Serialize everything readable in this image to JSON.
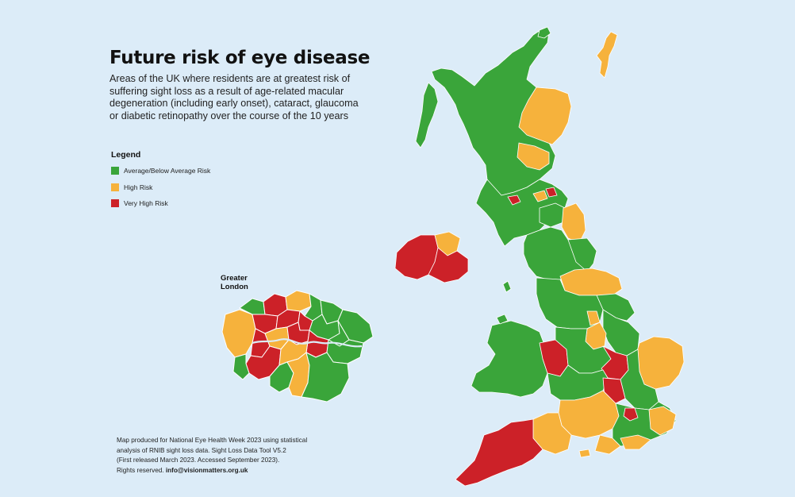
{
  "title": "Future risk of eye disease",
  "subtitle": "Areas of the UK where residents are at greatest risk of suffering sight loss as a result of age-related macular degeneration (including early onset), cataract, glaucoma or diabetic retinopathy over the course of the 10 years",
  "legend": {
    "title": "Legend",
    "items": [
      {
        "label": "Average/Below Average Risk",
        "color": "#3aa53a"
      },
      {
        "label": "High Risk",
        "color": "#f6b23c"
      },
      {
        "label": "Very High Risk",
        "color": "#cc2128"
      }
    ]
  },
  "inset": {
    "label_line1": "Greater",
    "label_line2": "London"
  },
  "footer": {
    "line1": "Map produced for National Eye Health Week 2023 using statistical",
    "line2": "analysis of RNIB sight loss data. Sight Loss Data Tool V5.2",
    "line3": "(First released March 2023. Accessed September 2023).",
    "line4_prefix": "Rights reserved. ",
    "email": "info@visionmatters.org.uk"
  },
  "colors": {
    "background": "#dcecf8",
    "green": "#3aa53a",
    "amber": "#f6b23c",
    "red": "#cc2128",
    "border": "#ffffff"
  }
}
